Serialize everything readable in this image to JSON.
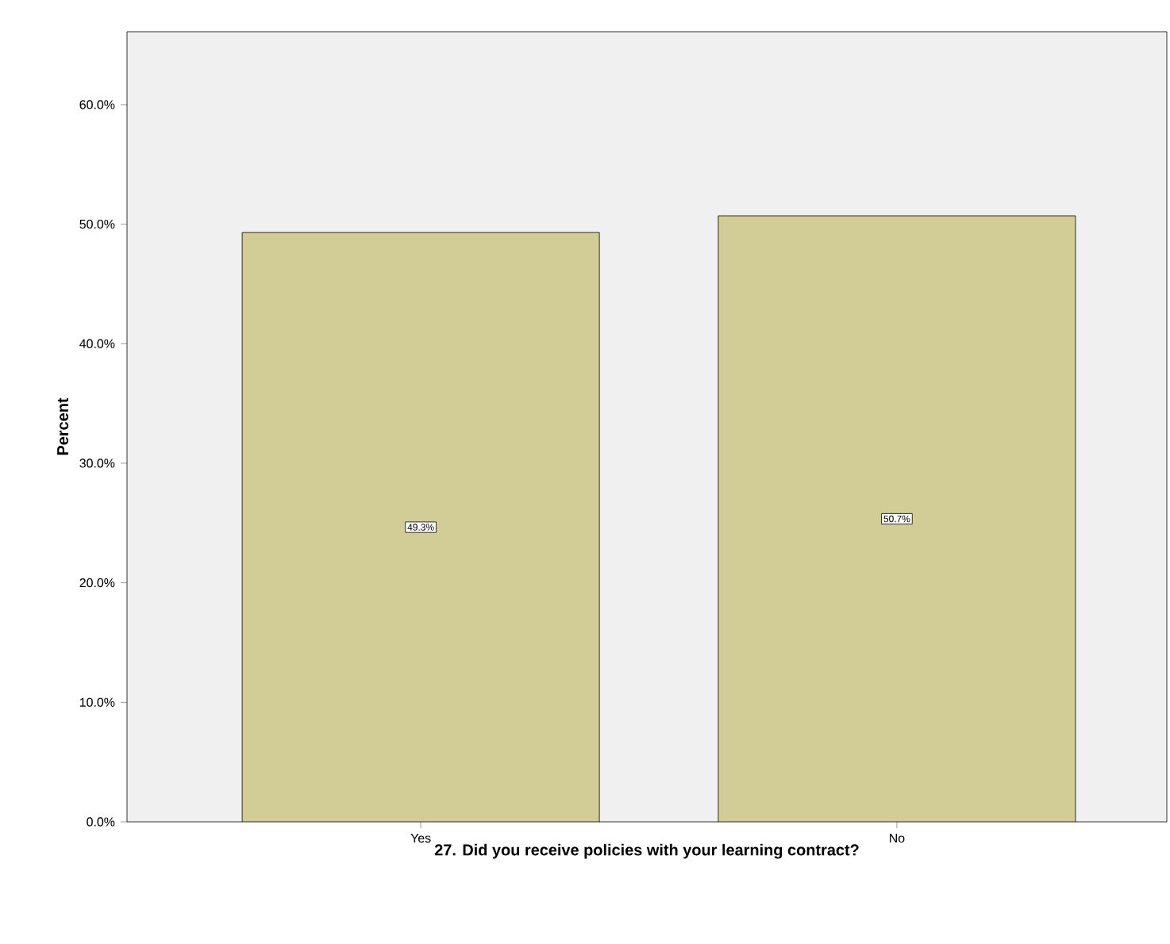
{
  "chart_data": {
    "type": "bar",
    "xlabel": "27. Did you receive policies with your learning contract?",
    "ylabel": "Percent",
    "categories": [
      "Yes",
      "No"
    ],
    "values": [
      49.3,
      50.7
    ],
    "value_labels": [
      "49.3%",
      "50.7%"
    ],
    "color": "#d2cc96",
    "ylim": [
      0,
      66.1
    ],
    "yticks": [
      {
        "value": 0,
        "label": "0.0%"
      },
      {
        "value": 10,
        "label": "10.0%"
      },
      {
        "value": 20,
        "label": "20.0%"
      },
      {
        "value": 30,
        "label": "30.0%"
      },
      {
        "value": 40,
        "label": "40.0%"
      },
      {
        "value": 50,
        "label": "50.0%"
      },
      {
        "value": 60,
        "label": "60.0%"
      }
    ]
  }
}
